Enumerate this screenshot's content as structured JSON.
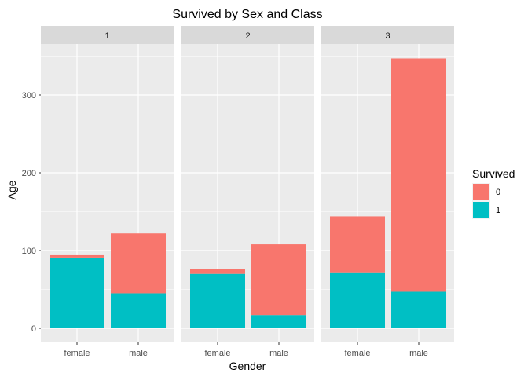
{
  "chart_data": {
    "type": "bar",
    "stacked": true,
    "title": "Survived by Sex and Class",
    "xlabel": "Gender",
    "ylabel": "Age",
    "ylim": [
      0,
      350
    ],
    "yticks": [
      0,
      100,
      200,
      300
    ],
    "grid": true,
    "categories": [
      "female",
      "male"
    ],
    "facet_label": "",
    "facets": [
      {
        "label": "1",
        "series": [
          {
            "name": "1",
            "values": [
              91,
              45
            ]
          },
          {
            "name": "0",
            "values": [
              3,
              77
            ]
          }
        ]
      },
      {
        "label": "2",
        "series": [
          {
            "name": "1",
            "values": [
              70,
              17
            ]
          },
          {
            "name": "0",
            "values": [
              6,
              91
            ]
          }
        ]
      },
      {
        "label": "3",
        "series": [
          {
            "name": "1",
            "values": [
              72,
              47
            ]
          },
          {
            "name": "0",
            "values": [
              72,
              300
            ]
          }
        ]
      }
    ],
    "legend": {
      "title": "Survived",
      "placement": "right",
      "entries": [
        {
          "label": "0",
          "color": "#F8766D"
        },
        {
          "label": "1",
          "color": "#00BFC4"
        }
      ]
    },
    "colors": {
      "0": "#F8766D",
      "1": "#00BFC4",
      "panel_bg": "#EBEBEB",
      "strip_bg": "#D9D9D9",
      "grid": "#FFFFFF"
    }
  }
}
